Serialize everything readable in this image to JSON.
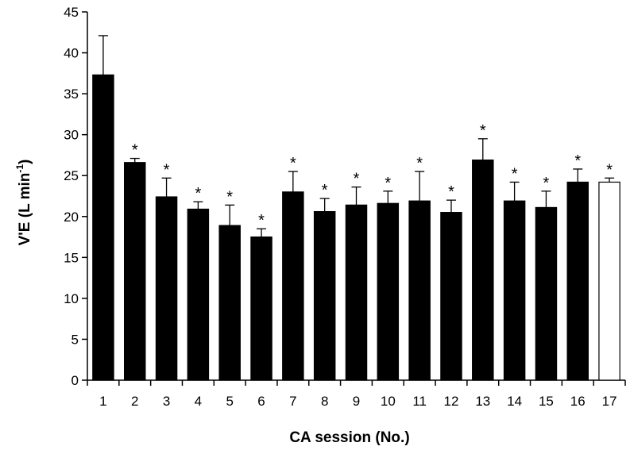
{
  "chart_data": {
    "type": "bar",
    "title": "",
    "xlabel": "CA session (No.)",
    "ylabel_main": "V'E (L min",
    "ylabel_sup": "-1",
    "ylabel_close": ")",
    "ylim": [
      0,
      45
    ],
    "yticks": [
      0,
      5,
      10,
      15,
      20,
      25,
      30,
      35,
      40,
      45
    ],
    "grid": false,
    "legend": "none",
    "categories": [
      "1",
      "2",
      "3",
      "4",
      "5",
      "6",
      "7",
      "8",
      "9",
      "10",
      "11",
      "12",
      "13",
      "14",
      "15",
      "16",
      "17"
    ],
    "values": [
      37.3,
      26.6,
      22.4,
      20.9,
      18.9,
      17.5,
      23.0,
      20.6,
      21.4,
      21.6,
      21.9,
      20.5,
      26.9,
      21.9,
      21.1,
      24.2,
      24.2
    ],
    "errors": [
      4.8,
      0.5,
      2.3,
      0.9,
      2.5,
      1.0,
      2.5,
      1.6,
      2.2,
      1.5,
      3.6,
      1.5,
      2.6,
      2.3,
      2.0,
      1.6,
      0.5
    ],
    "significance": [
      "",
      "*",
      "*",
      "*",
      "*",
      "*",
      "*",
      "*",
      "*",
      "*",
      "*",
      "*",
      "*",
      "*",
      "*",
      "*",
      "*"
    ],
    "fill_colors": [
      "#000000",
      "#000000",
      "#000000",
      "#000000",
      "#000000",
      "#000000",
      "#000000",
      "#000000",
      "#000000",
      "#000000",
      "#000000",
      "#000000",
      "#000000",
      "#000000",
      "#000000",
      "#000000",
      "#ffffff"
    ],
    "bar_stroke": "#000000"
  }
}
